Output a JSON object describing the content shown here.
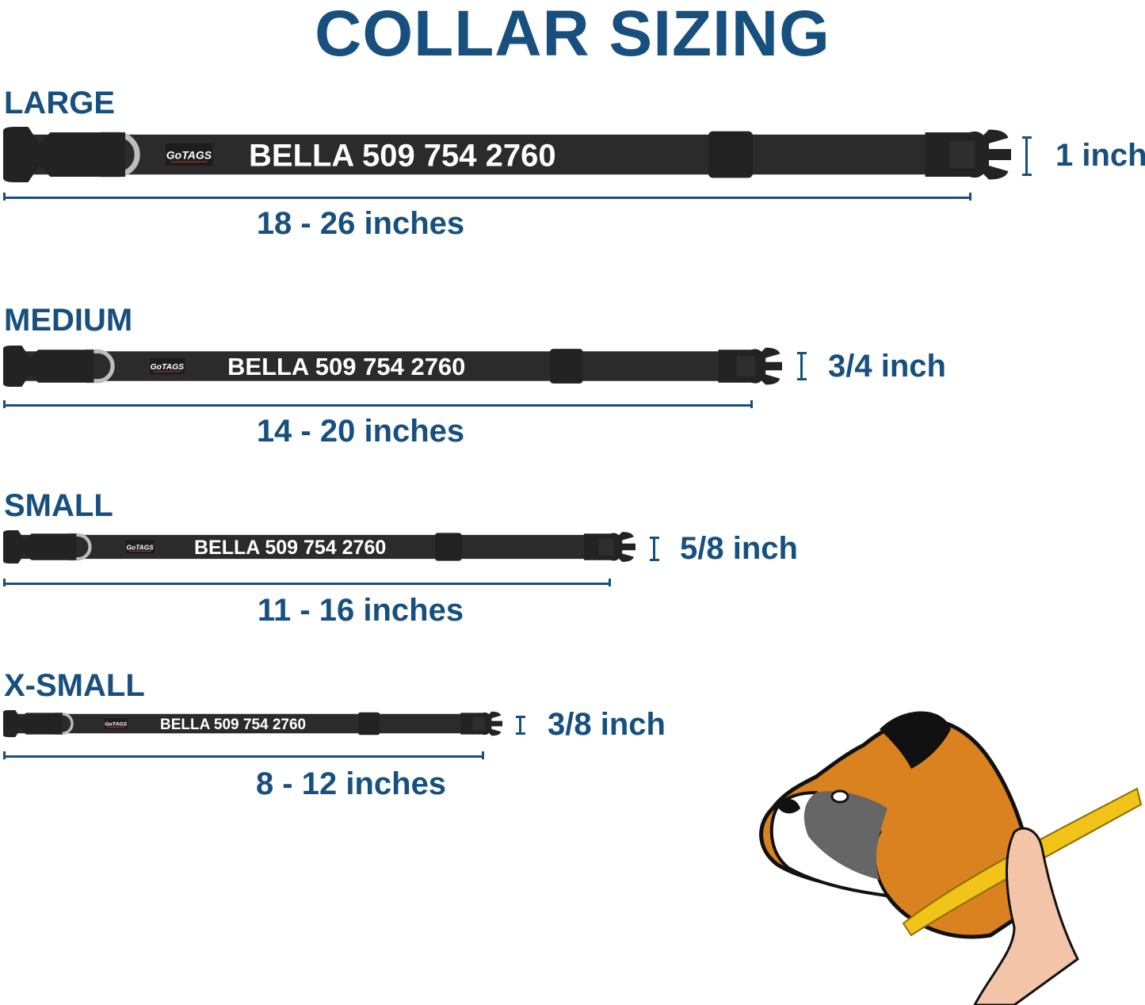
{
  "title": "COLLAR SIZING",
  "brand_logo": "GoTAGS",
  "colors": {
    "accent_blue": "#17507f",
    "collar": "#2b2b2b",
    "ring": "#bdbdbd",
    "tape": "#f2c318",
    "dog_fur": "#d9821f"
  },
  "sizes": [
    {
      "name": "LARGE",
      "collar_text": "BELLA 509 754 2760",
      "range": "18 - 26 inches",
      "width": "1 inch"
    },
    {
      "name": "MEDIUM",
      "collar_text": "BELLA 509 754 2760",
      "range": "14 - 20 inches",
      "width": "3/4 inch"
    },
    {
      "name": "SMALL",
      "collar_text": "BELLA 509 754 2760",
      "range": "11 - 16 inches",
      "width": "5/8 inch"
    },
    {
      "name": "X-SMALL",
      "collar_text": "BELLA 509 754 2760",
      "range": "8 - 12 inches",
      "width": "3/8 inch"
    }
  ],
  "illustration": "boxer-dog-neck-measurement"
}
